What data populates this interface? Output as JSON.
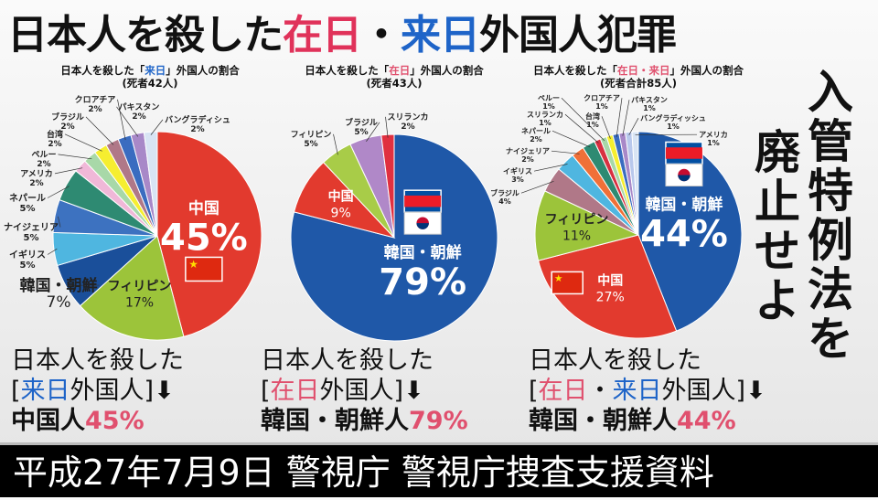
{
  "title": {
    "p1": "日本人を殺した",
    "p2": "在日",
    "p3": "・",
    "p4": "来日",
    "p5": "外国人犯罪"
  },
  "colors": {
    "accent_red": "#e0325a",
    "accent_blue": "#1e64c8"
  },
  "chart_data": [
    {
      "type": "pie",
      "title_pre": "日本人を殺した「",
      "title_hl": "来日",
      "title_post": "」外国人の割合",
      "subtitle": "(死者42人)",
      "slices": [
        {
          "label": "中国",
          "value": 45,
          "color": "#e23a2e",
          "inside": true,
          "flag": "china"
        },
        {
          "label": "フィリピン",
          "value": 17,
          "color": "#9cc43a",
          "inside": true
        },
        {
          "label": "韓国・朝鮮",
          "value": 7,
          "color": "#1a4f9a"
        },
        {
          "label": "イギリス",
          "value": 5,
          "color": "#4fb6e0"
        },
        {
          "label": "ナイジェリア",
          "value": 5,
          "color": "#3d72c0"
        },
        {
          "label": "ネパール",
          "value": 5,
          "color": "#2e8a72"
        },
        {
          "label": "アメリカ",
          "value": 2,
          "color": "#f0b8d8"
        },
        {
          "label": "ペルー",
          "value": 2,
          "color": "#a8d8a8"
        },
        {
          "label": "台湾",
          "value": 2,
          "color": "#f6ee30"
        },
        {
          "label": "ブラジル",
          "value": 2,
          "color": "#b07888"
        },
        {
          "label": "クロアチア",
          "value": 2,
          "color": "#3a6cc0"
        },
        {
          "label": "パキスタン",
          "value": 2,
          "color": "#a888c8"
        },
        {
          "label": "バングラディシュ",
          "value": 2,
          "color": "#d8e4f4"
        }
      ]
    },
    {
      "type": "pie",
      "title_pre": "日本人を殺した「",
      "title_hl": "在日",
      "title_post": "」外国人の割合",
      "subtitle": "(死者43人)",
      "slices": [
        {
          "label": "韓国・朝鮮",
          "value": 79,
          "color": "#1f58a8",
          "inside": true,
          "flag": "korea"
        },
        {
          "label": "中国",
          "value": 9,
          "color": "#e23a2e",
          "inside": true
        },
        {
          "label": "フィリピン",
          "value": 5,
          "color": "#a8cc48"
        },
        {
          "label": "ブラジル",
          "value": 5,
          "color": "#b088c8"
        },
        {
          "label": "スリランカ",
          "value": 2,
          "color": "#e03040"
        }
      ]
    },
    {
      "type": "pie",
      "title_pre": "日本人を殺した「",
      "title_hl": "在日・来日",
      "title_post": "」外国人の割合",
      "subtitle": "(死者合計85人)",
      "slices": [
        {
          "label": "韓国・朝鮮",
          "value": 44,
          "color": "#1f58a8",
          "inside": true,
          "flag": "korea"
        },
        {
          "label": "中国",
          "value": 27,
          "color": "#e23a2e",
          "inside": true,
          "flag": "china"
        },
        {
          "label": "フィリピン",
          "value": 11,
          "color": "#9cc43a",
          "inside": true
        },
        {
          "label": "ブラジル",
          "value": 4,
          "color": "#b07888"
        },
        {
          "label": "イギリス",
          "value": 3,
          "color": "#4fb6e0"
        },
        {
          "label": "ナイジェリア",
          "value": 2,
          "color": "#f07038"
        },
        {
          "label": "ネパール",
          "value": 2,
          "color": "#2e8a72"
        },
        {
          "label": "スリランカ",
          "value": 1,
          "color": "#d83040"
        },
        {
          "label": "ペルー",
          "value": 1,
          "color": "#a8d8a8"
        },
        {
          "label": "台湾",
          "value": 1,
          "color": "#f6ee30"
        },
        {
          "label": "クロアチア",
          "value": 1,
          "color": "#3a6cc0"
        },
        {
          "label": "パキスタン",
          "value": 1,
          "color": "#a888c8"
        },
        {
          "label": "バングラディッシュ",
          "value": 1,
          "color": "#b8c8ec"
        },
        {
          "label": "アメリカ",
          "value": 1,
          "color": "#d8e4f4"
        }
      ]
    }
  ],
  "summaries": [
    {
      "l1": "日本人を殺した",
      "open": "[",
      "hl1": "来日",
      "hl2": "",
      "sep": "",
      "rest": "外国人]",
      "arrow": "⬇",
      "who": "中国人",
      "pct": "45%"
    },
    {
      "l1": "日本人を殺した",
      "open": "[",
      "hl1": "在日",
      "hl2": "",
      "sep": "",
      "rest": "外国人]",
      "arrow": "⬇",
      "who": "韓国・朝鮮人",
      "pct": "79%"
    },
    {
      "l1": "日本人を殺した",
      "open": "[",
      "hl1": "在日",
      "sep": "・",
      "hl2": "来日",
      "rest": "外国人]",
      "arrow": "⬇",
      "who": "韓国・朝鮮人",
      "pct": "44%"
    }
  ],
  "vertical": {
    "col1": "入管特例法を",
    "col2": "廃止せよ"
  },
  "footer": "平成27年7月9日 警視庁 警視庁捜査支援資料"
}
